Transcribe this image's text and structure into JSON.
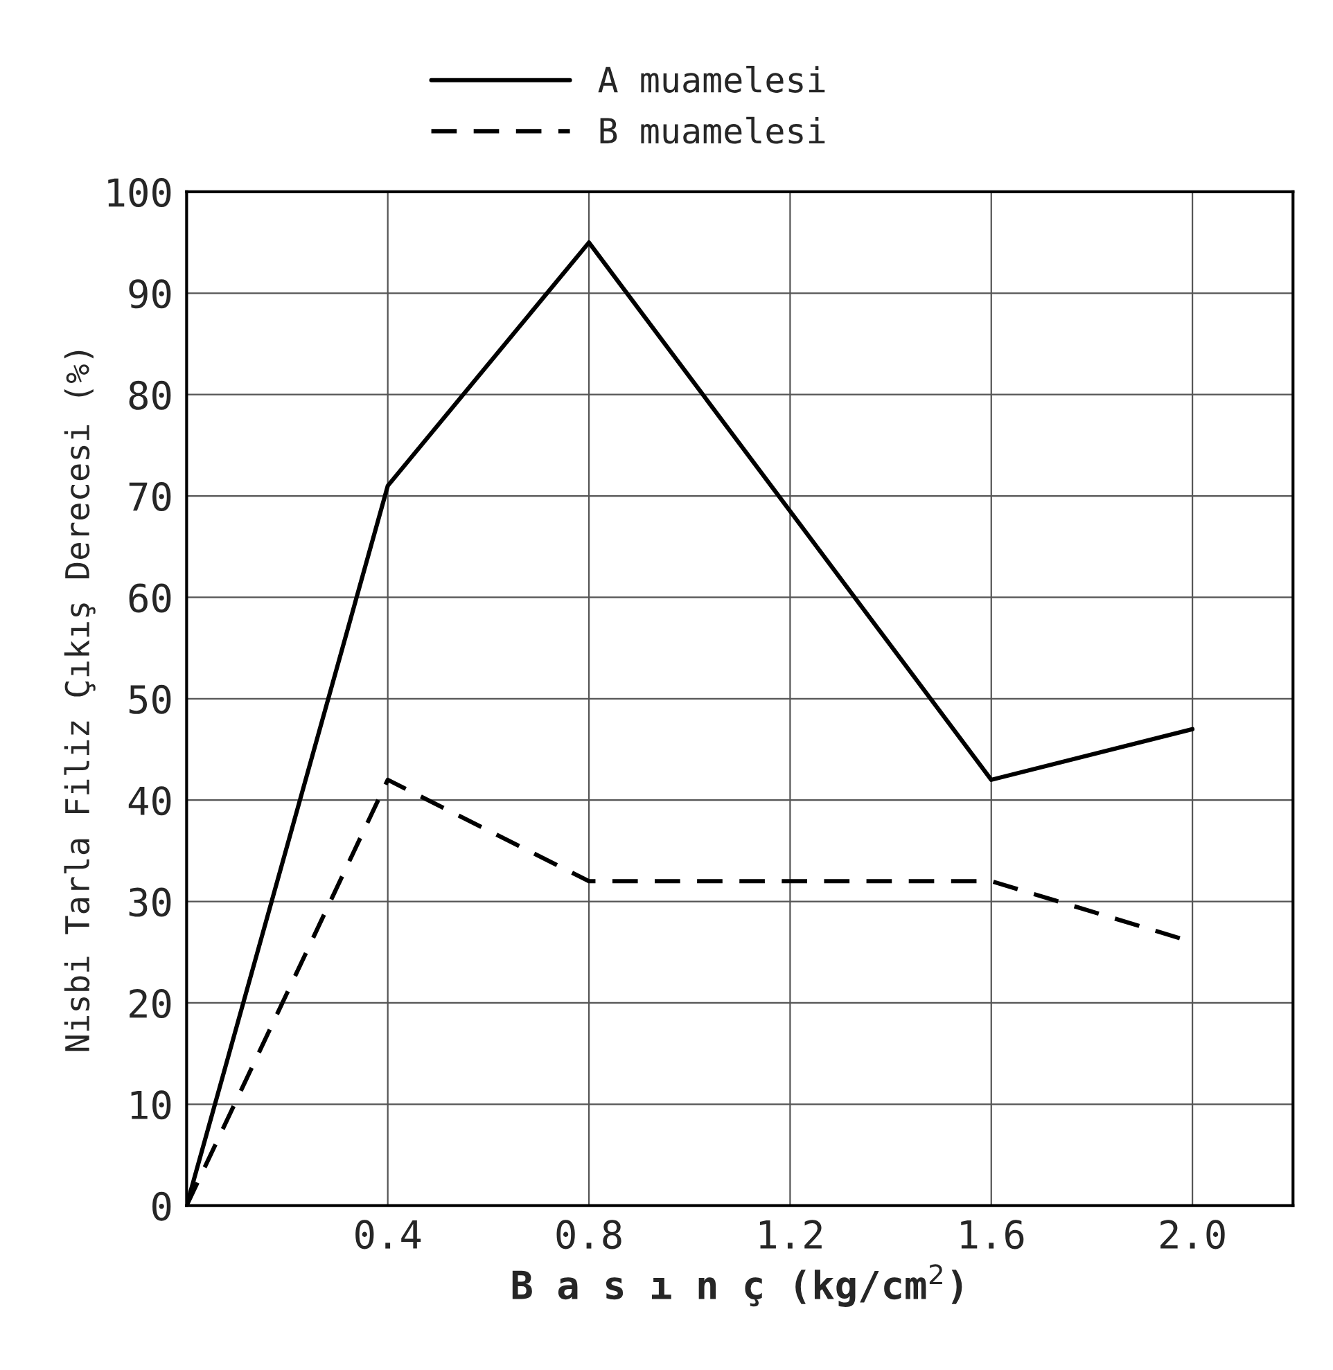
{
  "chart_data": {
    "type": "line",
    "xlabel": "B a s ı n ç (kg/cm$^{2}$)",
    "ylabel": "Nisbi Tarla Filiz Çıkış Derecesi (%)",
    "x": [
      0,
      0.4,
      0.8,
      1.6,
      2.0
    ],
    "series": [
      {
        "name": "A muamelesi",
        "color": "#000000",
        "line_style": "solid",
        "values": [
          0,
          71,
          95,
          42,
          47
        ]
      },
      {
        "name": "B muamelesi",
        "color": "#000000",
        "line_style": "dashed",
        "values": [
          0,
          42,
          32,
          32,
          26
        ]
      }
    ],
    "xlim": [
      0,
      2.2
    ],
    "xticks": [
      0.4,
      0.8,
      1.2,
      1.6,
      {
        "value": 2,
        "label": "2.0"
      }
    ],
    "ylim": [
      0,
      100
    ],
    "yticks": [
      0,
      10,
      20,
      30,
      40,
      50,
      60,
      70,
      80,
      90,
      100
    ],
    "grid": true,
    "legend": "top",
    "marker": "none"
  }
}
